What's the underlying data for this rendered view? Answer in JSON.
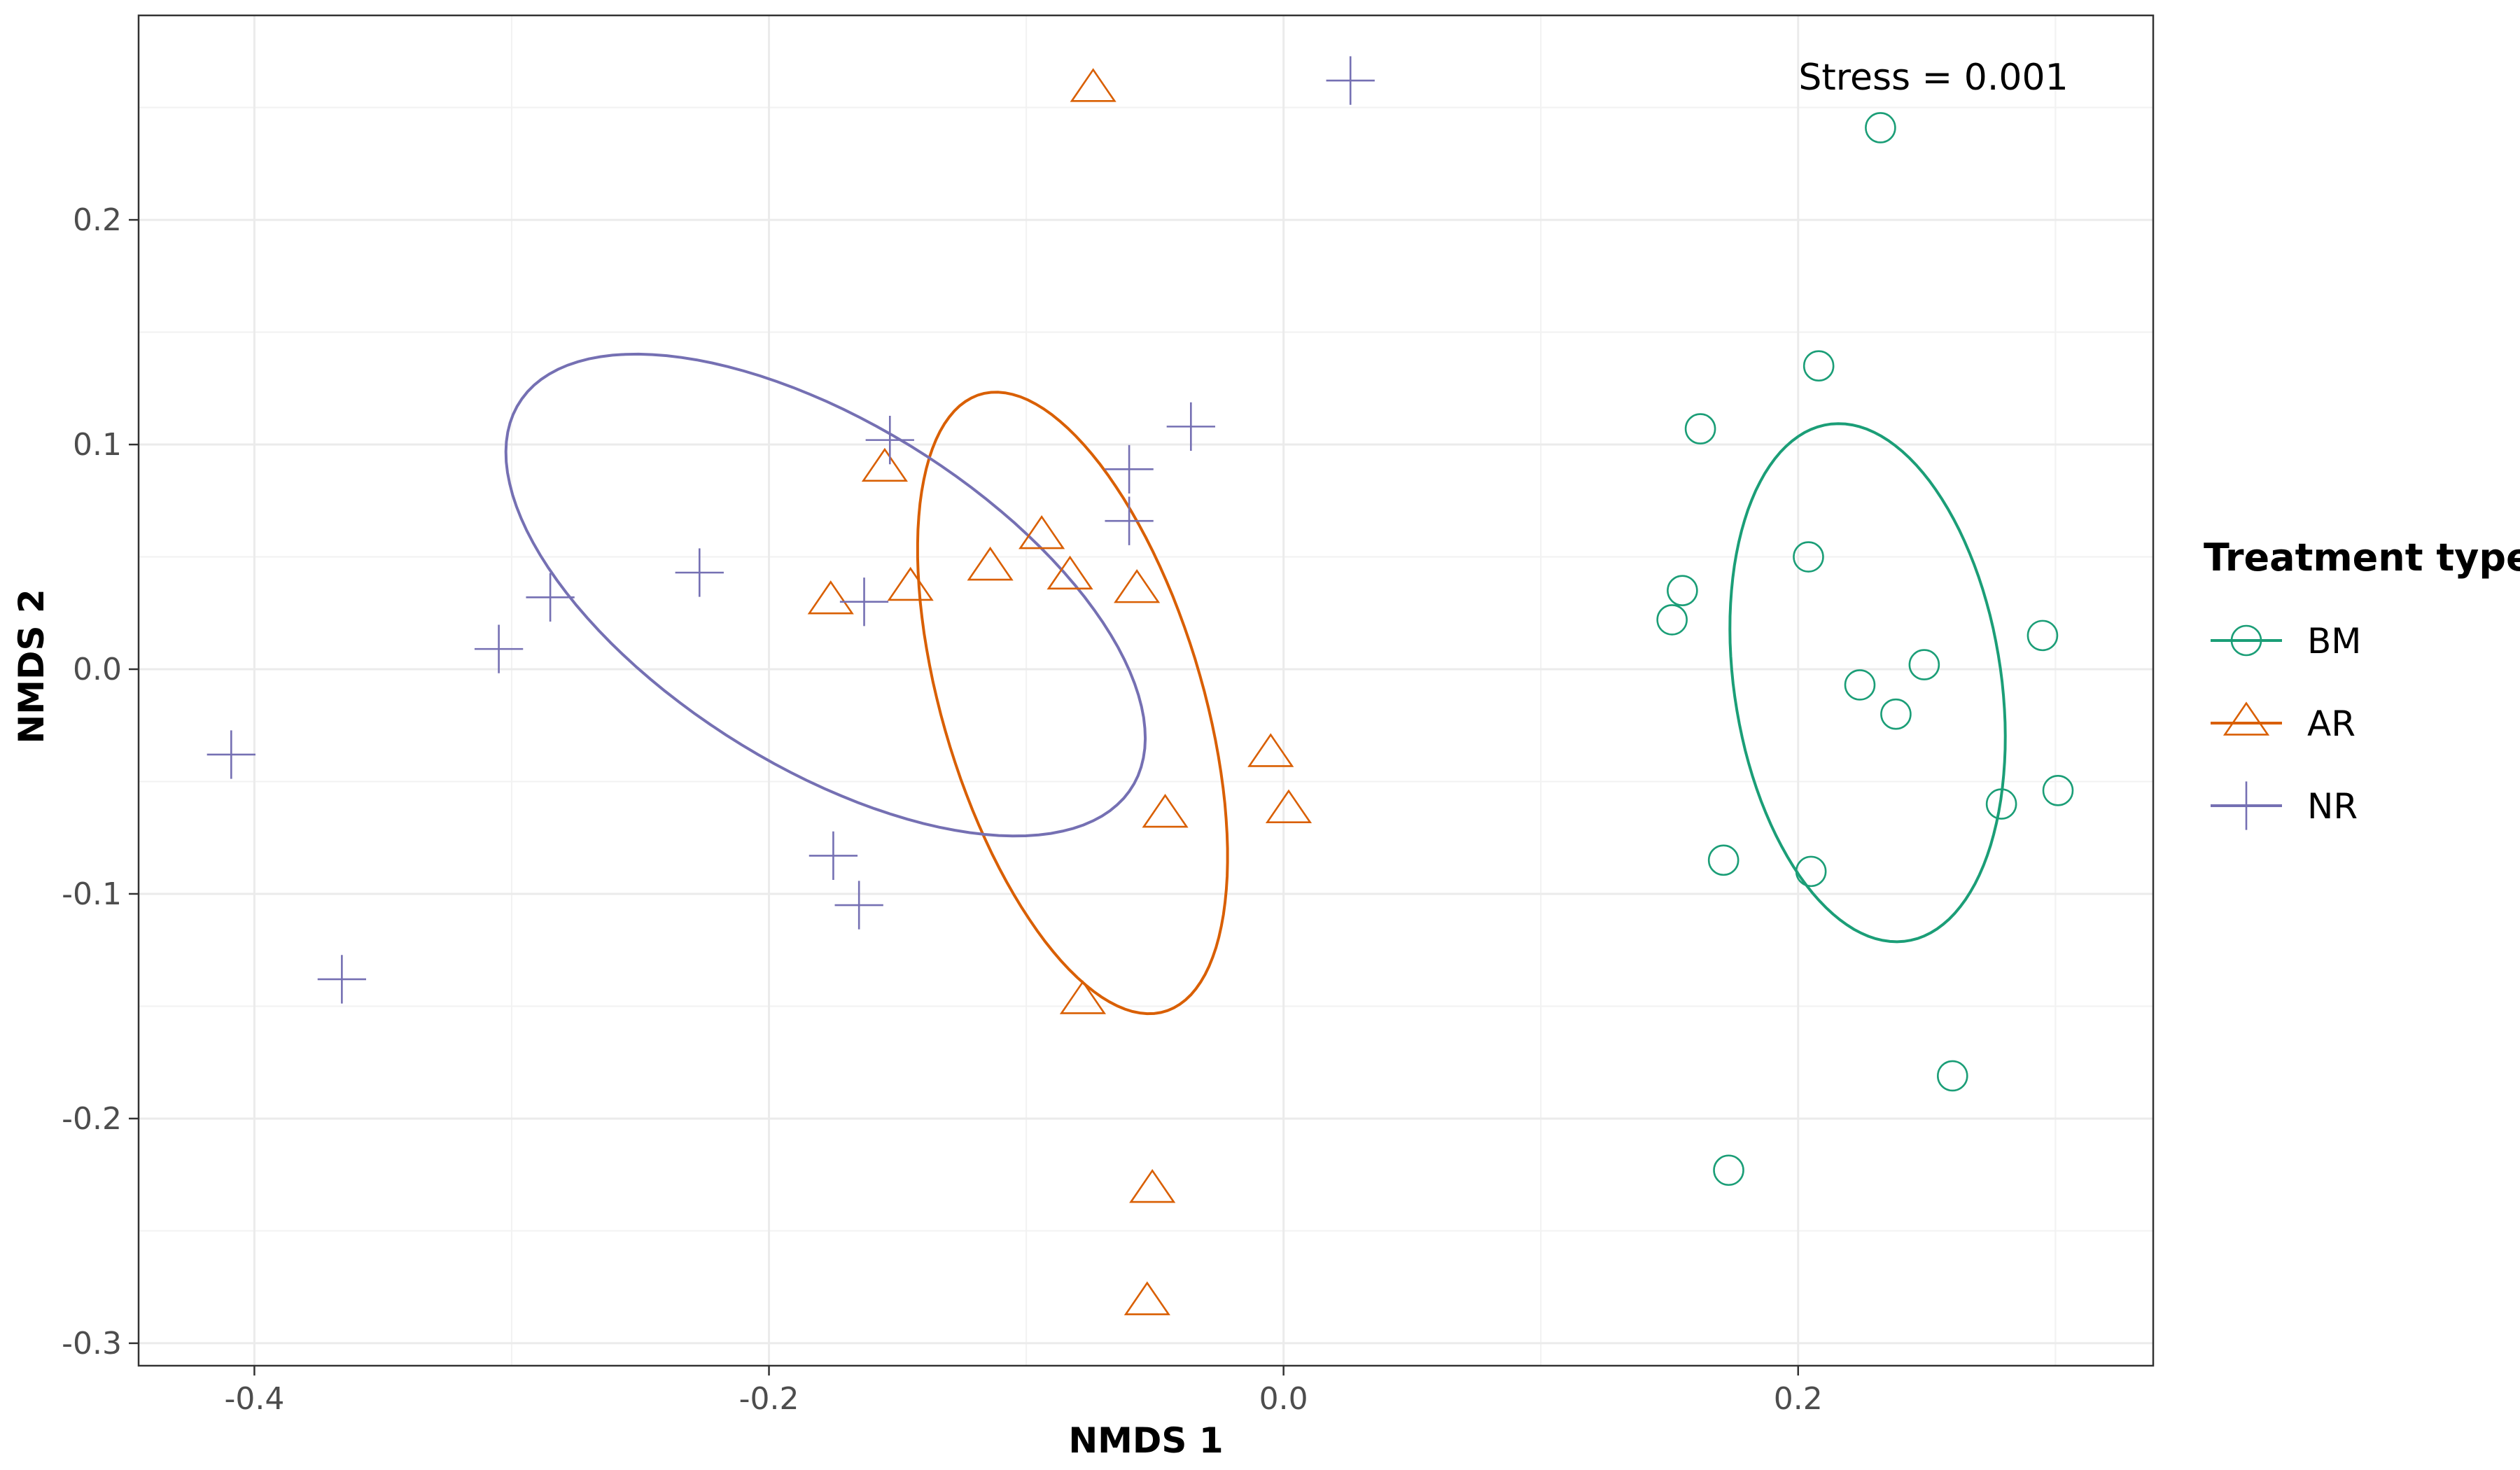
{
  "chart_data": {
    "type": "scatter",
    "xlabel": "NMDS 1",
    "ylabel": "NMDS 2",
    "xlim": [
      -0.445,
      0.338
    ],
    "ylim": [
      -0.31,
      0.291
    ],
    "x_ticks": [
      -0.4,
      -0.2,
      0.0,
      0.2
    ],
    "x_tick_labels": [
      "-0.4",
      "-0.2",
      "0.0",
      "0.2"
    ],
    "y_ticks": [
      -0.3,
      -0.2,
      -0.1,
      0.0,
      0.1,
      0.2
    ],
    "y_tick_labels": [
      "-0.3",
      "-0.2",
      "-0.1",
      "0.0",
      "0.1",
      "0.2"
    ],
    "grid": true,
    "legend": {
      "title": "Treatment type",
      "position": "right"
    },
    "annotation": "Stress = 0.001",
    "series": [
      {
        "name": "BM",
        "marker": "circle",
        "color": "#1b9e77",
        "points": [
          [
            0.232,
            0.241
          ],
          [
            0.208,
            0.135
          ],
          [
            0.162,
            0.107
          ],
          [
            0.204,
            0.05
          ],
          [
            0.155,
            0.035
          ],
          [
            0.151,
            0.022
          ],
          [
            0.295,
            0.015
          ],
          [
            0.249,
            0.002
          ],
          [
            0.224,
            -0.007
          ],
          [
            0.238,
            -0.02
          ],
          [
            0.279,
            -0.06
          ],
          [
            0.301,
            -0.054
          ],
          [
            0.171,
            -0.085
          ],
          [
            0.205,
            -0.09
          ],
          [
            0.26,
            -0.181
          ],
          [
            0.173,
            -0.223
          ]
        ],
        "ellipse": {
          "cx": 0.227,
          "cy": -0.006,
          "a": 0.116,
          "b": 0.052,
          "angle_deg": 97
        }
      },
      {
        "name": "AR",
        "marker": "triangle",
        "color": "#d95f02",
        "points": [
          [
            -0.074,
            0.258
          ],
          [
            -0.155,
            0.089
          ],
          [
            -0.094,
            0.059
          ],
          [
            -0.114,
            0.045
          ],
          [
            -0.083,
            0.041
          ],
          [
            -0.145,
            0.036
          ],
          [
            -0.057,
            0.035
          ],
          [
            -0.176,
            0.03
          ],
          [
            -0.005,
            -0.038
          ],
          [
            0.002,
            -0.063
          ],
          [
            -0.046,
            -0.065
          ],
          [
            -0.078,
            -0.148
          ],
          [
            -0.051,
            -0.232
          ],
          [
            -0.053,
            -0.282
          ]
        ],
        "ellipse": {
          "cx": -0.082,
          "cy": -0.015,
          "a": 0.142,
          "b": 0.051,
          "angle_deg": 104
        }
      },
      {
        "name": "NR",
        "marker": "cross",
        "color": "#7570b3",
        "points": [
          [
            0.026,
            0.262
          ],
          [
            -0.036,
            0.108
          ],
          [
            -0.153,
            0.102
          ],
          [
            -0.06,
            0.089
          ],
          [
            -0.06,
            0.066
          ],
          [
            -0.227,
            0.043
          ],
          [
            -0.285,
            0.032
          ],
          [
            -0.163,
            0.03
          ],
          [
            -0.305,
            0.009
          ],
          [
            -0.409,
            -0.038
          ],
          [
            -0.175,
            -0.083
          ],
          [
            -0.165,
            -0.105
          ],
          [
            -0.366,
            -0.138
          ]
        ],
        "ellipse": {
          "cx": -0.178,
          "cy": 0.033,
          "a": 0.147,
          "b": 0.073,
          "angle_deg": -38
        }
      }
    ]
  }
}
